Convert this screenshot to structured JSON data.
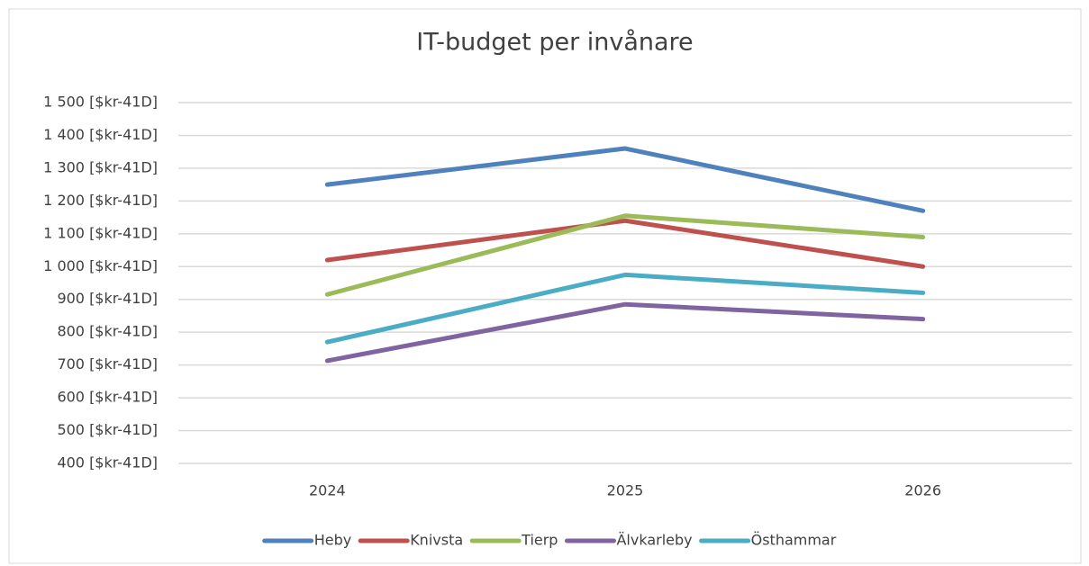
{
  "chart_data": {
    "type": "line",
    "title": "IT-budget per invånare",
    "categories": [
      "2024",
      "2025",
      "2026"
    ],
    "series": [
      {
        "name": "Heby",
        "color": "#4f81bd",
        "values": [
          1250,
          1360,
          1170
        ]
      },
      {
        "name": "Knivsta",
        "color": "#c0504d",
        "values": [
          1020,
          1140,
          1000
        ]
      },
      {
        "name": "Tierp",
        "color": "#9bbb59",
        "values": [
          915,
          1155,
          1090
        ]
      },
      {
        "name": "Älvkarleby",
        "color": "#8064a2",
        "values": [
          713,
          885,
          840
        ]
      },
      {
        "name": "Östhammar",
        "color": "#4bacc6",
        "values": [
          770,
          975,
          920
        ]
      }
    ],
    "ylim": [
      400,
      1500
    ],
    "yticks": [
      {
        "value": 400,
        "label": "400 [$kr-41D]"
      },
      {
        "value": 500,
        "label": "500 [$kr-41D]"
      },
      {
        "value": 600,
        "label": "600 [$kr-41D]"
      },
      {
        "value": 700,
        "label": "700 [$kr-41D]"
      },
      {
        "value": 800,
        "label": "800 [$kr-41D]"
      },
      {
        "value": 900,
        "label": "900 [$kr-41D]"
      },
      {
        "value": 1000,
        "label": "1 000 [$kr-41D]"
      },
      {
        "value": 1100,
        "label": "1 100 [$kr-41D]"
      },
      {
        "value": 1200,
        "label": "1 200 [$kr-41D]"
      },
      {
        "value": 1300,
        "label": "1 300 [$kr-41D]"
      },
      {
        "value": 1400,
        "label": "1 400 [$kr-41D]"
      },
      {
        "value": 1500,
        "label": "1 500 [$kr-41D]"
      }
    ],
    "grid": true,
    "legend": "bottom"
  }
}
